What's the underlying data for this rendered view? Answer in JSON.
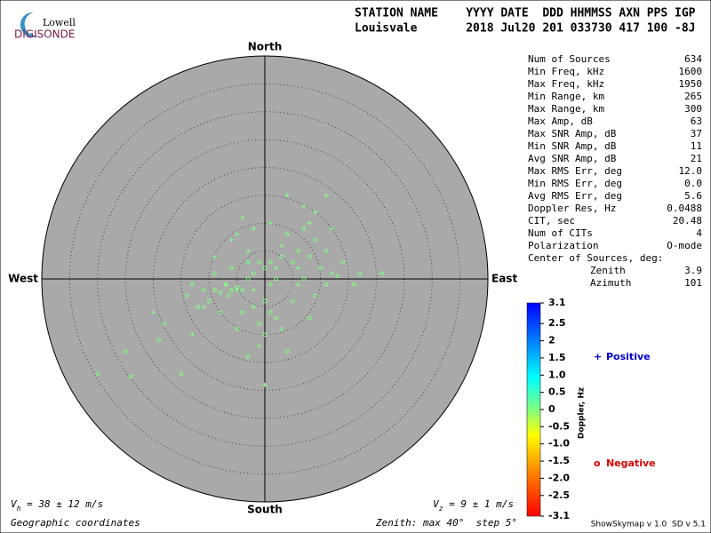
{
  "logo": {
    "top": "Lowell",
    "bottom": "DIGISONDE"
  },
  "header": {
    "line1": "STATION NAME    YYYY DATE  DDD HHMMSS AXN PPS IGP",
    "line2": "Louisvale       2018 Jul20 201 033730 417 100 -8J"
  },
  "stats": [
    {
      "label": "Num of Sources",
      "value": "634"
    },
    {
      "label": "Min Freq, kHz",
      "value": "1600"
    },
    {
      "label": "Max Freq, kHz",
      "value": "1950"
    },
    {
      "label": "Min Range, km",
      "value": "265"
    },
    {
      "label": "Max Range, km",
      "value": "300"
    },
    {
      "label": "Max Amp, dB",
      "value": "63"
    },
    {
      "label": "Max SNR Amp, dB",
      "value": "37"
    },
    {
      "label": "Min SNR Amp, dB",
      "value": "11"
    },
    {
      "label": "Avg SNR Amp, dB",
      "value": "21"
    },
    {
      "label": "Max RMS Err, deg",
      "value": "12.0"
    },
    {
      "label": "Min RMS Err, deg",
      "value": "0.0"
    },
    {
      "label": "Avg RMS Err, deg",
      "value": "5.6"
    },
    {
      "label": "Doppler Res, Hz",
      "value": "0.0488"
    },
    {
      "label": "CIT, sec",
      "value": "20.48"
    },
    {
      "label": "Num of CITs",
      "value": "4"
    },
    {
      "label": "Polarization",
      "value": "O-mode"
    },
    {
      "label": "Center of Sources, deg:"
    },
    {
      "label": "Zenith",
      "value": "3.9",
      "indent": true
    },
    {
      "label": "Azimuth",
      "value": "101",
      "indent": true
    }
  ],
  "chart_data": {
    "type": "scatter",
    "projection": "polar",
    "directions": {
      "north": "North",
      "south": "South",
      "east": "East",
      "west": "West"
    },
    "rlim": [
      0,
      40
    ],
    "rticks": [
      5,
      10,
      15,
      20,
      25,
      30,
      35
    ],
    "background": "#a9a9a9",
    "series": [
      {
        "name": "Negative",
        "marker": "circle",
        "marker_label": "o",
        "color": "#80ff80",
        "legend_color": "#dd0000",
        "x": [
          -6,
          -7,
          -8,
          -5,
          -9,
          -6.5,
          -4,
          -3,
          -2,
          0,
          1,
          3,
          5,
          6,
          8,
          10,
          12,
          -10,
          -12,
          -14,
          -18,
          -25,
          -30,
          -24,
          -19,
          0,
          0,
          1,
          3,
          4,
          -3,
          -15,
          2,
          5,
          7,
          9,
          11,
          13,
          17,
          21,
          4,
          7,
          9,
          11,
          -1,
          -2,
          -4,
          -8,
          -11,
          -13,
          -6,
          -9,
          -3,
          2,
          6,
          8,
          -1,
          -5,
          14,
          16
        ],
        "y": [
          -2,
          -1,
          -2.5,
          -1.5,
          -2,
          -3,
          -2,
          0,
          1,
          2,
          3,
          4,
          3,
          5,
          4,
          2,
          1,
          -4,
          -5,
          -3,
          -8,
          -13,
          -17,
          -17.5,
          -11,
          -10,
          -4,
          -6,
          -9,
          -13,
          -14,
          -17,
          -7,
          -4,
          0,
          -3,
          -1,
          0.5,
          1,
          1,
          8,
          9,
          7,
          5,
          3,
          -5,
          -6,
          -6,
          -2,
          -1,
          2,
          1,
          3,
          0,
          -1,
          -7,
          -8,
          -9,
          3,
          -1
        ]
      },
      {
        "name": "Positive",
        "marker": "plus",
        "marker_label": "+",
        "color": "#80ff80",
        "legend_color": "#0000cc",
        "x": [
          -5,
          -4,
          -6,
          -2,
          1,
          4,
          7,
          11,
          9,
          12,
          -9,
          -3,
          3,
          -7,
          -5,
          -2,
          2,
          1,
          -1,
          0,
          -13,
          -20,
          -11,
          6,
          8
        ],
        "y": [
          8,
          11,
          7,
          9,
          10,
          15,
          13,
          15,
          12,
          9,
          4,
          5,
          6,
          -1,
          -2,
          -2,
          2,
          -1,
          -12,
          -19,
          -10,
          -6,
          -5,
          2,
          10
        ]
      }
    ],
    "colorbar": {
      "label": "Doppler, Hz",
      "lim": [
        -3.1,
        3.1
      ],
      "ticks": [
        3.1,
        2.5,
        2,
        1.5,
        {
          "value": 1,
          "label": "1.0"
        },
        0.5,
        0,
        -0.5,
        {
          "value": -1,
          "label": "-1.0"
        },
        -1.5,
        {
          "value": -2,
          "label": "-2.0"
        },
        -2.5,
        -3.1
      ]
    },
    "footer": {
      "vh": {
        "symbol": "V",
        "sub": "h",
        "text": " = 38 ± 12 m/s"
      },
      "vz": {
        "symbol": "V",
        "sub": "z",
        "text": " = 9 ± 1 m/s"
      },
      "coords": "Geographic coordinates",
      "zenith": "Zenith: max 40°  step 5°",
      "version": "ShowSkymap v 1.0  SD v 5.1"
    }
  }
}
